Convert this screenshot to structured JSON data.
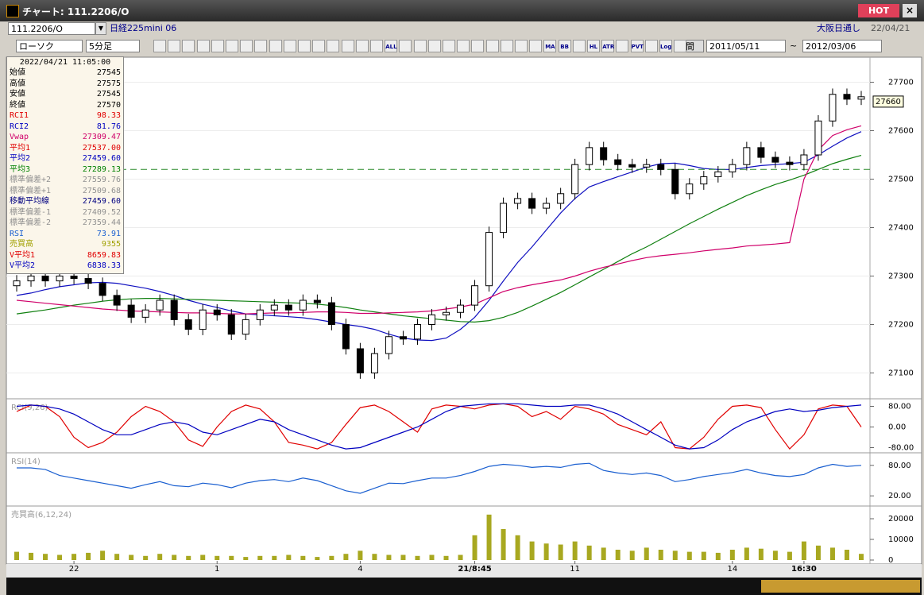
{
  "window": {
    "title": "チャート: 111.2206/O",
    "hot": "HOT"
  },
  "toolbar": {
    "symbol": "111.2206/O",
    "name": "日経225mini 06",
    "market": "大阪日通し",
    "date": "22/04/21",
    "chart_style": "ローソク",
    "interval": "5分足",
    "period_label": "期間",
    "from": "2011/05/11",
    "tilde": "~",
    "to": "2012/03/06",
    "icon_labels": [
      "ALL",
      "MA",
      "BB",
      "HL",
      "ATR",
      "PVT",
      "Log"
    ]
  },
  "info_panel": {
    "timestamp": "2022/04/21 11:05:00",
    "rows": [
      {
        "label": "始値",
        "value": "27545",
        "color": "#000000"
      },
      {
        "label": "高値",
        "value": "27575",
        "color": "#000000"
      },
      {
        "label": "安値",
        "value": "27545",
        "color": "#000000"
      },
      {
        "label": "終値",
        "value": "27570",
        "color": "#000000"
      },
      {
        "label": "RCI1",
        "value": "98.33",
        "color": "#e00000"
      },
      {
        "label": "RCI2",
        "value": "81.76",
        "color": "#0000c0"
      },
      {
        "label": "Vwap",
        "value": "27309.47",
        "color": "#d0006a"
      },
      {
        "label": "平均1",
        "value": "27537.00",
        "color": "#e00000"
      },
      {
        "label": "平均2",
        "value": "27459.60",
        "color": "#0000c0"
      },
      {
        "label": "平均3",
        "value": "27289.13",
        "color": "#008000"
      },
      {
        "label": "標準偏差+2",
        "value": "27559.76",
        "color": "#909090"
      },
      {
        "label": "標準偏差+1",
        "value": "27509.68",
        "color": "#909090"
      },
      {
        "label": "移動平均線",
        "value": "27459.60",
        "color": "#000080"
      },
      {
        "label": "標準偏差-1",
        "value": "27409.52",
        "color": "#909090"
      },
      {
        "label": "標準偏差-2",
        "value": "27359.44",
        "color": "#909090"
      },
      {
        "label": "RSI",
        "value": "73.91",
        "color": "#1a5fd0"
      },
      {
        "label": "売買高",
        "value": "9355",
        "color": "#a0a000"
      },
      {
        "label": "V平均1",
        "value": "8659.83",
        "color": "#e00000"
      },
      {
        "label": "V平均2",
        "value": "6838.33",
        "color": "#0000c0"
      }
    ]
  },
  "chart_data": [
    {
      "type": "candlestick",
      "categories": [
        null,
        null,
        null,
        null,
        "22",
        null,
        null,
        null,
        null,
        null,
        null,
        null,
        null,
        null,
        "1",
        null,
        null,
        null,
        null,
        null,
        null,
        null,
        null,
        null,
        "4",
        null,
        null,
        null,
        null,
        null,
        null,
        null,
        "21/8:45",
        null,
        null,
        null,
        null,
        null,
        null,
        "11",
        null,
        null,
        null,
        null,
        null,
        null,
        null,
        null,
        null,
        null,
        "14",
        null,
        null,
        null,
        null,
        "16:30",
        null,
        null,
        null,
        null
      ],
      "open": [
        27280,
        27290,
        27300,
        27290,
        27300,
        27295,
        27285,
        27260,
        27240,
        27215,
        27230,
        27250,
        27210,
        27190,
        27230,
        27220,
        27180,
        27210,
        27230,
        27240,
        27230,
        27250,
        27245,
        27200,
        27150,
        27100,
        27140,
        27175,
        27170,
        27200,
        27220,
        27225,
        27240,
        27280,
        27390,
        27450,
        27460,
        27440,
        27450,
        27470,
        27530,
        27565,
        27540,
        27530,
        27525,
        27530,
        27520,
        27470,
        27490,
        27505,
        27515,
        27530,
        27565,
        27545,
        27535,
        27530,
        27550,
        27620,
        27675,
        27665
      ],
      "high": [
        27302,
        27312,
        27312,
        27312,
        27312,
        27307,
        27297,
        27272,
        27252,
        27242,
        27262,
        27262,
        27222,
        27242,
        27242,
        27232,
        27222,
        27242,
        27252,
        27252,
        27262,
        27262,
        27257,
        27212,
        27162,
        27152,
        27187,
        27187,
        27212,
        27232,
        27237,
        27252,
        27292,
        27402,
        27462,
        27472,
        27472,
        27462,
        27482,
        27542,
        27577,
        27577,
        27552,
        27542,
        27542,
        27542,
        27532,
        27502,
        27517,
        27527,
        27542,
        27577,
        27577,
        27557,
        27547,
        27562,
        27632,
        27687,
        27687,
        27682
      ],
      "low": [
        27268,
        27278,
        27278,
        27278,
        27283,
        27273,
        27248,
        27228,
        27203,
        27203,
        27218,
        27198,
        27178,
        27178,
        27208,
        27168,
        27168,
        27198,
        27218,
        27218,
        27218,
        27233,
        27188,
        27138,
        27088,
        27088,
        27128,
        27158,
        27158,
        27188,
        27208,
        27213,
        27228,
        27268,
        27378,
        27438,
        27428,
        27428,
        27438,
        27458,
        27518,
        27528,
        27518,
        27513,
        27513,
        27508,
        27458,
        27458,
        27478,
        27493,
        27503,
        27518,
        27533,
        27523,
        27518,
        27518,
        27538,
        27608,
        27653,
        27653
      ],
      "close": [
        27290,
        27300,
        27290,
        27300,
        27295,
        27285,
        27260,
        27240,
        27215,
        27230,
        27250,
        27210,
        27190,
        27230,
        27220,
        27180,
        27210,
        27230,
        27240,
        27230,
        27250,
        27245,
        27200,
        27150,
        27100,
        27140,
        27175,
        27170,
        27200,
        27220,
        27225,
        27240,
        27280,
        27390,
        27450,
        27460,
        27440,
        27450,
        27470,
        27530,
        27565,
        27540,
        27530,
        27525,
        27530,
        27520,
        27470,
        27490,
        27505,
        27515,
        27530,
        27565,
        27545,
        27535,
        27530,
        27550,
        27620,
        27675,
        27665,
        27670
      ],
      "series": [
        {
          "color": "#1010c0",
          "values": [
            27260,
            27265,
            27272,
            27278,
            27282,
            27286,
            27287,
            27285,
            27280,
            27275,
            27268,
            27260,
            27250,
            27242,
            27235,
            27228,
            27222,
            27220,
            27218,
            27216,
            27214,
            27210,
            27205,
            27200,
            27196,
            27190,
            27180,
            27172,
            27168,
            27167,
            27172,
            27190,
            27215,
            27250,
            27290,
            27328,
            27360,
            27395,
            27430,
            27460,
            27484,
            27495,
            27505,
            27515,
            27525,
            27532,
            27533,
            27528,
            27522,
            27520,
            27520,
            27524,
            27528,
            27530,
            27532,
            27535,
            27550,
            27568,
            27585,
            27598
          ]
        },
        {
          "color": "#108010",
          "values": [
            27222,
            27226,
            27230,
            27235,
            27240,
            27244,
            27248,
            27251,
            27253,
            27254,
            27254,
            27253,
            27252,
            27251,
            27250,
            27249,
            27248,
            27247,
            27246,
            27245,
            27244,
            27242,
            27239,
            27235,
            27230,
            27226,
            27222,
            27218,
            27215,
            27212,
            27209,
            27206,
            27205,
            27208,
            27215,
            27225,
            27238,
            27252,
            27266,
            27282,
            27298,
            27314,
            27330,
            27346,
            27360,
            27376,
            27392,
            27408,
            27423,
            27438,
            27452,
            27466,
            27478,
            27489,
            27498,
            27508,
            27520,
            27532,
            27541,
            27549
          ]
        },
        {
          "color": "#d0006a",
          "values": [
            27250,
            27247,
            27244,
            27241,
            27238,
            27235,
            27232,
            27230,
            27228,
            27227,
            27226,
            27225,
            27224,
            27224,
            27223,
            27222,
            27222,
            27223,
            27224,
            27224,
            27225,
            27226,
            27226,
            27225,
            27223,
            27223,
            27224,
            27225,
            27226,
            27228,
            27232,
            27236,
            27242,
            27255,
            27268,
            27276,
            27282,
            27287,
            27292,
            27300,
            27310,
            27318,
            27325,
            27332,
            27338,
            27342,
            27345,
            27348,
            27352,
            27355,
            27358,
            27362,
            27364,
            27366,
            27369,
            27500,
            27560,
            27590,
            27602,
            27610
          ]
        }
      ],
      "last_price": 27660,
      "reference_line": 27520,
      "ylim": [
        27050,
        27750
      ],
      "yticks": [
        27100,
        27200,
        27300,
        27400,
        27500,
        27600,
        27700
      ],
      "grid": true
    },
    {
      "type": "line",
      "title": "RCI(9,26)",
      "series": [
        {
          "color": "#e00000",
          "values": [
            60,
            85,
            80,
            40,
            -40,
            -80,
            -60,
            -20,
            40,
            80,
            60,
            20,
            -50,
            -75,
            0,
            60,
            85,
            70,
            20,
            -60,
            -70,
            -85,
            -60,
            10,
            75,
            85,
            60,
            20,
            -20,
            70,
            85,
            80,
            70,
            85,
            90,
            80,
            40,
            60,
            30,
            80,
            70,
            50,
            10,
            -10,
            -30,
            20,
            -80,
            -85,
            -40,
            30,
            80,
            85,
            75,
            -10,
            -85,
            -30,
            70,
            85,
            80,
            0
          ]
        },
        {
          "color": "#0000c0",
          "values": [
            80,
            85,
            80,
            70,
            50,
            20,
            -10,
            -30,
            -30,
            -10,
            10,
            20,
            10,
            -20,
            -30,
            -10,
            10,
            30,
            20,
            -10,
            -30,
            -50,
            -70,
            -85,
            -80,
            -60,
            -40,
            -20,
            0,
            30,
            60,
            80,
            85,
            90,
            90,
            90,
            85,
            80,
            80,
            85,
            85,
            70,
            50,
            20,
            -10,
            -40,
            -70,
            -85,
            -80,
            -50,
            -10,
            20,
            40,
            60,
            70,
            60,
            65,
            75,
            80,
            85
          ]
        }
      ],
      "ylim": [
        -100,
        100
      ],
      "yticks": [
        {
          "value": 80,
          "label": "80.00"
        },
        {
          "value": 0,
          "label": "0.00"
        },
        {
          "value": -80,
          "label": "-80.00"
        }
      ]
    },
    {
      "type": "line",
      "title": "RSI(14)",
      "series": [
        {
          "color": "#1a5fd0",
          "values": [
            75,
            75,
            72,
            60,
            55,
            50,
            45,
            40,
            35,
            42,
            48,
            40,
            38,
            45,
            42,
            36,
            45,
            50,
            52,
            48,
            55,
            50,
            40,
            30,
            25,
            35,
            45,
            44,
            50,
            55,
            55,
            60,
            68,
            78,
            82,
            80,
            76,
            78,
            76,
            82,
            84,
            70,
            65,
            62,
            65,
            60,
            48,
            52,
            58,
            62,
            66,
            72,
            65,
            60,
            58,
            62,
            75,
            82,
            78,
            80
          ]
        }
      ],
      "ylim": [
        0,
        100
      ],
      "yticks": [
        {
          "value": 80,
          "label": "80.00"
        },
        {
          "value": 20,
          "label": "20.00"
        }
      ]
    },
    {
      "type": "bar",
      "title": "売買高(6,12,24)",
      "color": "#a8a820",
      "values": [
        4000,
        3500,
        3000,
        2500,
        3000,
        3500,
        4500,
        3000,
        2500,
        2000,
        3000,
        2500,
        2000,
        2500,
        2000,
        2000,
        1500,
        2000,
        2000,
        2500,
        2000,
        1500,
        2000,
        3000,
        4500,
        3000,
        2500,
        2500,
        2000,
        2500,
        2000,
        2500,
        12000,
        22000,
        15000,
        12000,
        9000,
        8000,
        7500,
        9000,
        7000,
        6000,
        5000,
        4500,
        6000,
        5000,
        4500,
        4000,
        4000,
        3500,
        5000,
        6000,
        5500,
        4500,
        4000,
        9000,
        7000,
        6000,
        5000,
        3000
      ],
      "ylim": [
        0,
        25000
      ],
      "yticks": [
        20000,
        10000,
        0
      ]
    }
  ]
}
